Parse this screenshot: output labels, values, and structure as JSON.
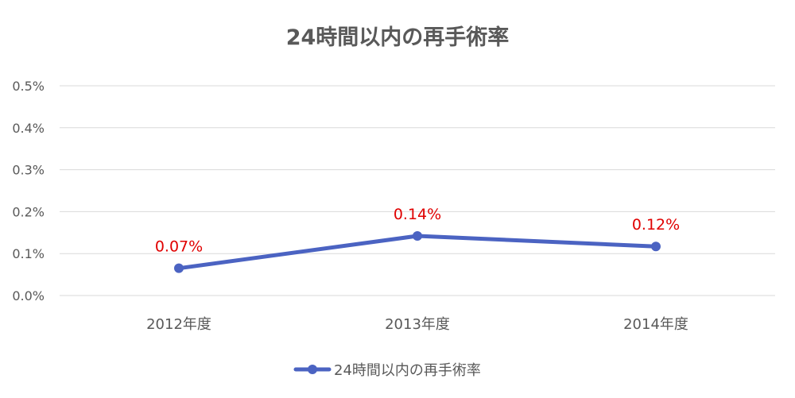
{
  "chart_data": {
    "type": "line",
    "title": "24時間以内の再手術率",
    "categories": [
      "2012年度",
      "2013年度",
      "2014年度"
    ],
    "series": [
      {
        "name": "24時間以内の再手術率",
        "values": [
          0.065,
          0.142,
          0.117
        ],
        "data_labels": [
          "0.07%",
          "0.14%",
          "0.12%"
        ]
      }
    ],
    "y_ticks": [
      "0.0%",
      "0.1%",
      "0.2%",
      "0.3%",
      "0.4%",
      "0.5%"
    ],
    "ylim": [
      0,
      0.5
    ],
    "grid": true,
    "legend": "bottom",
    "colors": {
      "line": "#4b63c2",
      "label": "#e00000",
      "grid": "#d9d9d9",
      "text": "#595959"
    }
  }
}
